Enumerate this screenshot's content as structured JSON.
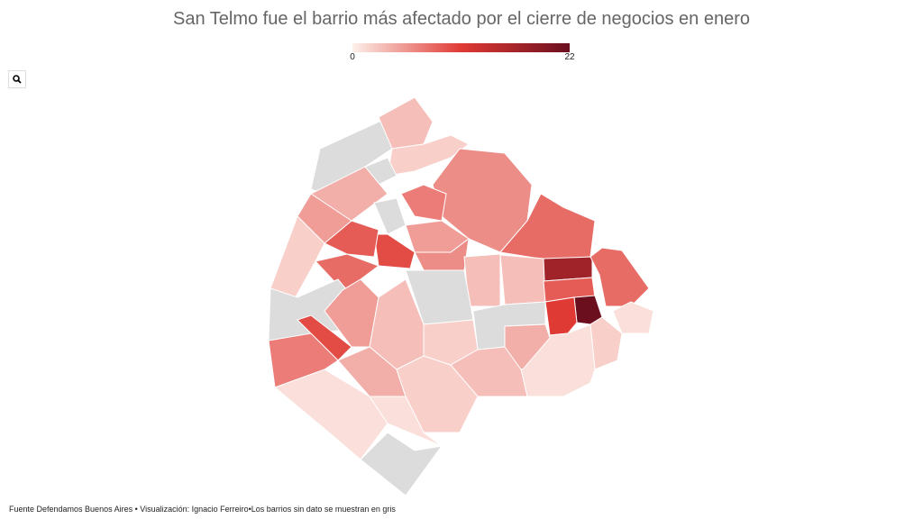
{
  "title": "San Telmo fue el barrio más afectado por el cierre de negocios en enero",
  "legend": {
    "min": 0,
    "max": 22,
    "colors": [
      "#fdf0ea",
      "#e03a35",
      "#6b0f1f"
    ]
  },
  "map": {
    "no_data_color": "#dcdcdc",
    "values": [
      null,
      3,
      2,
      null,
      4,
      6,
      7,
      null,
      8,
      5,
      10,
      9,
      5,
      2,
      8,
      6,
      17,
      3,
      null,
      3,
      8,
      9,
      22,
      11,
      2,
      1,
      null,
      1,
      4,
      2,
      null,
      10,
      7,
      5,
      3,
      3,
      4,
      1,
      2,
      1,
      null
    ]
  },
  "footer": "Fuente Defendamos Buenos Aires • Visualización: Ignacio Ferreiro•Los barrios sin dato se muestran en gris"
}
